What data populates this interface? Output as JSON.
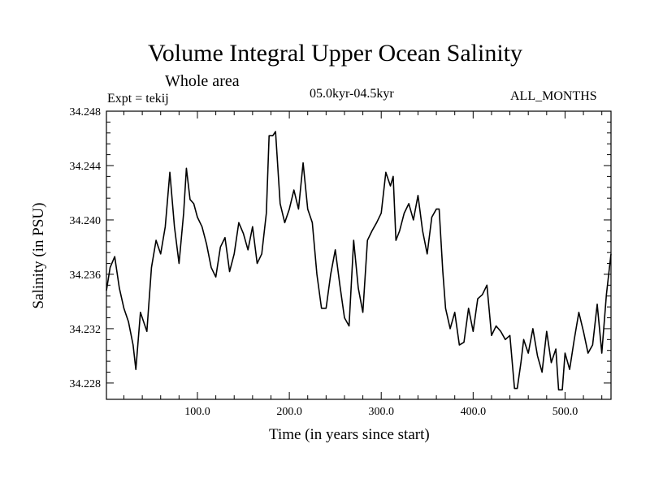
{
  "chart_data": {
    "type": "line",
    "title": "Volume Integral Upper Ocean Salinity",
    "subtitle": "Whole area",
    "expt_label": "Expt = tekij",
    "period_label": "05.0kyr-04.5kyr",
    "months_label": "ALL_MONTHS",
    "xlabel": "Time (in years since start)",
    "ylabel": "Salinity (in PSU)",
    "xlim": [
      1,
      550
    ],
    "ylim": [
      34.2268,
      34.248
    ],
    "xticks": [
      100,
      200,
      300,
      400,
      500
    ],
    "xtick_labels": [
      "100.0",
      "200.0",
      "300.0",
      "400.0",
      "500.0"
    ],
    "yticks": [
      34.228,
      34.232,
      34.236,
      34.24,
      34.244,
      34.248
    ],
    "ytick_labels": [
      "34.228",
      "34.232",
      "34.236",
      "34.240",
      "34.244",
      "34.248"
    ],
    "series": [
      {
        "name": "salinity",
        "x": [
          1,
          5,
          10,
          15,
          20,
          25,
          30,
          33,
          38,
          45,
          50,
          55,
          60,
          65,
          70,
          75,
          80,
          85,
          88,
          92,
          96,
          100,
          105,
          110,
          115,
          120,
          125,
          130,
          135,
          140,
          145,
          150,
          155,
          160,
          165,
          170,
          175,
          178,
          182,
          185,
          190,
          195,
          200,
          205,
          210,
          215,
          220,
          225,
          230,
          235,
          240,
          245,
          250,
          255,
          260,
          265,
          270,
          275,
          280,
          285,
          290,
          295,
          300,
          305,
          310,
          313,
          316,
          320,
          325,
          330,
          335,
          340,
          345,
          350,
          355,
          360,
          363,
          367,
          370,
          375,
          380,
          385,
          390,
          395,
          400,
          405,
          410,
          415,
          420,
          425,
          430,
          435,
          440,
          445,
          448,
          452,
          455,
          460,
          465,
          470,
          475,
          480,
          485,
          490,
          493,
          497,
          500,
          505,
          510,
          515,
          520,
          525,
          530,
          535,
          540,
          545,
          550
        ],
        "y": [
          34.2348,
          34.2365,
          34.2373,
          34.235,
          34.2335,
          34.2325,
          34.2308,
          34.229,
          34.2332,
          34.2318,
          34.2365,
          34.2385,
          34.2375,
          34.2395,
          34.2435,
          34.2395,
          34.2368,
          34.2405,
          34.2438,
          34.2415,
          34.2412,
          34.2402,
          34.2395,
          34.2382,
          34.2365,
          34.2358,
          34.238,
          34.2387,
          34.2362,
          34.2375,
          34.2398,
          34.239,
          34.2378,
          34.2395,
          34.2368,
          34.2375,
          34.2405,
          34.2462,
          34.2462,
          34.2465,
          34.2412,
          34.2398,
          34.2408,
          34.2422,
          34.2408,
          34.2442,
          34.2408,
          34.2398,
          34.236,
          34.2335,
          34.2335,
          34.236,
          34.2378,
          34.2352,
          34.2328,
          34.2322,
          34.2385,
          34.235,
          34.2332,
          34.2385,
          34.2392,
          34.2398,
          34.2405,
          34.2435,
          34.2425,
          34.2432,
          34.2385,
          34.2392,
          34.2405,
          34.2412,
          34.24,
          34.2418,
          34.2392,
          34.2375,
          34.2402,
          34.2408,
          34.2408,
          34.2362,
          34.2335,
          34.232,
          34.2332,
          34.2308,
          34.231,
          34.2335,
          34.2318,
          34.2342,
          34.2345,
          34.2352,
          34.2315,
          34.2322,
          34.2318,
          34.2312,
          34.2315,
          34.2276,
          34.2276,
          34.2295,
          34.2312,
          34.2302,
          34.232,
          34.23,
          34.2288,
          34.2318,
          34.2295,
          34.2305,
          34.2275,
          34.2275,
          34.2302,
          34.229,
          34.2312,
          34.2332,
          34.2318,
          34.2302,
          34.2308,
          34.2338,
          34.2302,
          34.2345,
          34.2375
        ]
      }
    ]
  }
}
